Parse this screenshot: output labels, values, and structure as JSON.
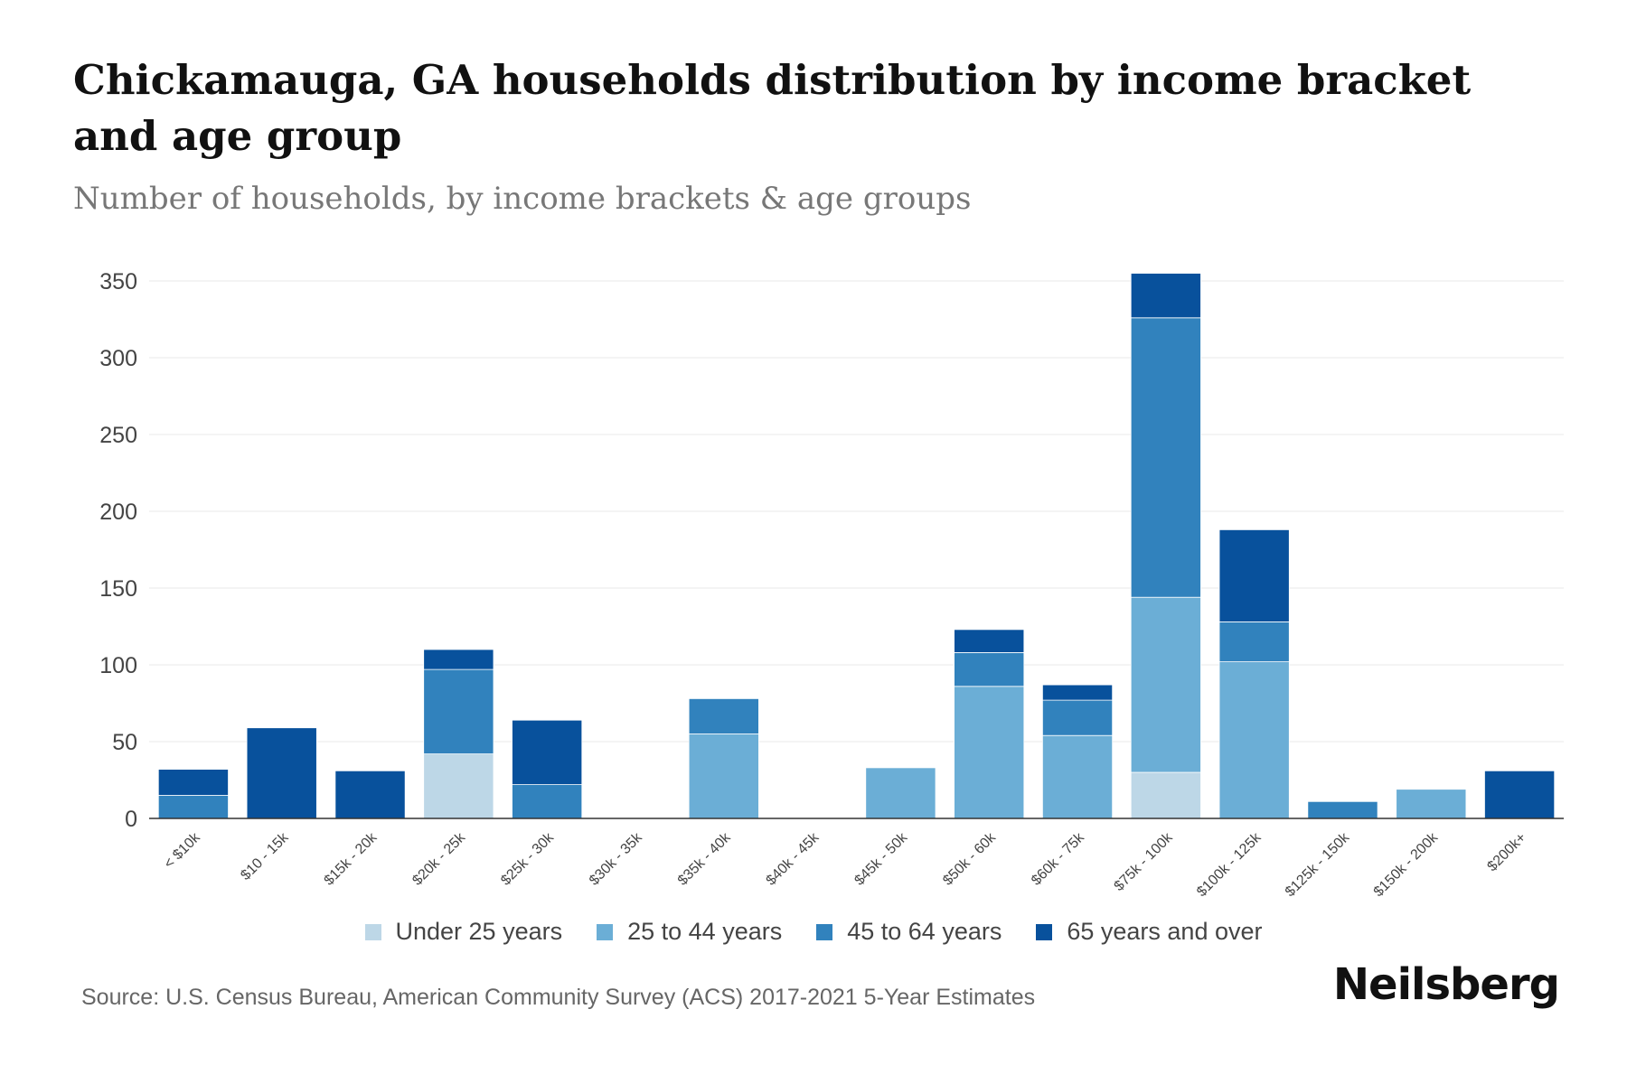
{
  "title": "Chickamauga, GA households distribution by income bracket and age group",
  "subtitle": "Number of households, by income brackets & age groups",
  "source": "Source: U.S. Census Bureau, American Community Survey (ACS) 2017-2021 5-Year Estimates",
  "logo": "Neilsberg",
  "legend_items": [
    {
      "label": "Under 25 years",
      "color": "#bdd7e7"
    },
    {
      "label": "25 to 44 years",
      "color": "#6baed6"
    },
    {
      "label": "45 to 64 years",
      "color": "#3182bd"
    },
    {
      "label": "65 years and over",
      "color": "#08519c"
    }
  ],
  "chart_data": {
    "type": "bar",
    "stacked": true,
    "categories": [
      "< $10k",
      "$10 - 15k",
      "$15k - 20k",
      "$20k - 25k",
      "$25k - 30k",
      "$30k - 35k",
      "$35k - 40k",
      "$40k - 45k",
      "$45k - 50k",
      "$50k - 60k",
      "$60k - 75k",
      "$75k - 100k",
      "$100k - 125k",
      "$125k - 150k",
      "$150k - 200k",
      "$200k+"
    ],
    "series": [
      {
        "name": "Under 25 years",
        "color": "#bdd7e7",
        "values": [
          0,
          0,
          0,
          42,
          0,
          0,
          0,
          0,
          0,
          0,
          0,
          30,
          0,
          0,
          0,
          0
        ]
      },
      {
        "name": "25 to 44 years",
        "color": "#6baed6",
        "values": [
          0,
          0,
          0,
          0,
          0,
          0,
          55,
          0,
          33,
          86,
          54,
          114,
          102,
          0,
          19,
          0
        ]
      },
      {
        "name": "45 to 64 years",
        "color": "#3182bd",
        "values": [
          15,
          0,
          0,
          55,
          22,
          0,
          23,
          0,
          0,
          22,
          23,
          182,
          26,
          11,
          0,
          0
        ]
      },
      {
        "name": "65 years and over",
        "color": "#08519c",
        "values": [
          17,
          59,
          31,
          13,
          42,
          0,
          0,
          0,
          0,
          15,
          10,
          29,
          60,
          0,
          0,
          31
        ]
      }
    ],
    "yticks": [
      0,
      50,
      100,
      150,
      200,
      250,
      300,
      350
    ],
    "ylim": [
      0,
      350
    ],
    "grid": true,
    "legend_position": "bottom"
  }
}
